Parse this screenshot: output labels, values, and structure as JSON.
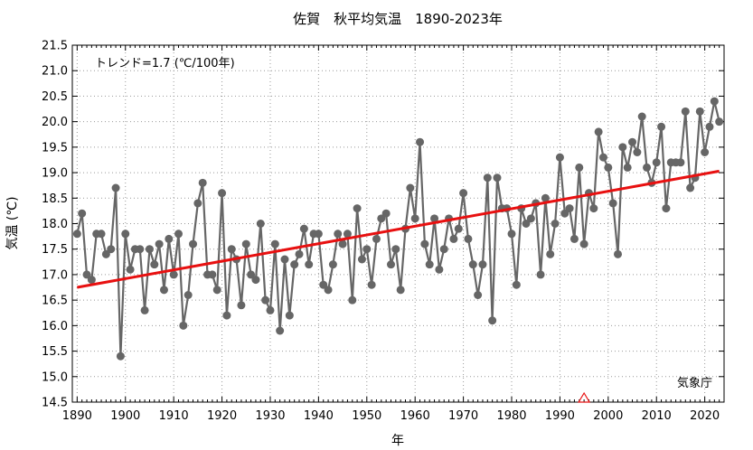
{
  "chart_data": {
    "type": "line",
    "title": "佐賀　秋平均気温　1890-2023年",
    "xlabel": "年",
    "ylabel": "気温 (℃)",
    "xlim": [
      1889,
      2024
    ],
    "ylim": [
      14.5,
      21.5
    ],
    "xticks": [
      1890,
      1900,
      1910,
      1920,
      1930,
      1940,
      1950,
      1960,
      1970,
      1980,
      1990,
      2000,
      2010,
      2020
    ],
    "yticks": [
      14.5,
      15.0,
      15.5,
      16.0,
      16.5,
      17.0,
      17.5,
      18.0,
      18.5,
      19.0,
      19.5,
      20.0,
      20.5,
      21.0,
      21.5
    ],
    "grid": true,
    "trend_annotation": "トレンド=1.7 (℃/100年)",
    "source_label": "気象庁",
    "colors": {
      "series": "#666666",
      "trend": "#e81010",
      "marker": "#e81010",
      "grid": "#999999"
    },
    "series": [
      {
        "type": "line-markers",
        "x": [
          1890,
          1891,
          1892,
          1893,
          1894,
          1895,
          1896,
          1897,
          1898,
          1899,
          1900,
          1901,
          1902,
          1903,
          1904,
          1905,
          1906,
          1907,
          1908,
          1909,
          1910,
          1911,
          1912,
          1913,
          1914,
          1915,
          1916,
          1917,
          1918,
          1919,
          1920,
          1921,
          1922,
          1923,
          1924,
          1925,
          1926,
          1927,
          1928,
          1929,
          1930,
          1931,
          1932,
          1933,
          1934,
          1935,
          1936,
          1937,
          1938,
          1939,
          1940,
          1941,
          1942,
          1943,
          1944,
          1945,
          1946,
          1947,
          1948,
          1949,
          1950,
          1951,
          1952,
          1953,
          1954,
          1955,
          1956,
          1957,
          1958,
          1959,
          1960,
          1961,
          1962,
          1963,
          1964,
          1965,
          1966,
          1967,
          1968,
          1969,
          1970,
          1971,
          1972,
          1973,
          1974,
          1975,
          1976,
          1977,
          1978,
          1979,
          1980,
          1981,
          1982,
          1983,
          1984,
          1985,
          1986,
          1987,
          1988,
          1989,
          1990,
          1991,
          1992,
          1993,
          1994,
          1995,
          1996,
          1997,
          1998,
          1999,
          2000,
          2001,
          2002,
          2003,
          2004,
          2005,
          2006,
          2007,
          2008,
          2009,
          2010,
          2011,
          2012,
          2013,
          2014,
          2015,
          2016,
          2017,
          2018,
          2019,
          2020,
          2021,
          2022,
          2023
        ],
        "y": [
          17.8,
          18.2,
          17.0,
          16.9,
          17.8,
          17.8,
          17.4,
          17.5,
          18.7,
          15.4,
          17.8,
          17.1,
          17.5,
          17.5,
          16.3,
          17.5,
          17.2,
          17.6,
          16.7,
          17.7,
          17.0,
          17.8,
          16.0,
          16.6,
          17.6,
          18.4,
          18.8,
          17.0,
          17.0,
          16.7,
          18.6,
          16.2,
          17.5,
          17.3,
          16.4,
          17.6,
          17.0,
          16.9,
          18.0,
          16.5,
          16.3,
          17.6,
          15.9,
          17.3,
          16.2,
          17.2,
          17.4,
          17.9,
          17.2,
          17.8,
          17.8,
          16.8,
          16.7,
          17.2,
          17.8,
          17.6,
          17.8,
          16.5,
          18.3,
          17.3,
          17.5,
          16.8,
          17.7,
          18.1,
          18.2,
          17.2,
          17.5,
          16.7,
          17.9,
          18.7,
          18.1,
          19.6,
          17.6,
          17.2,
          18.1,
          17.1,
          17.5,
          18.1,
          17.7,
          17.9,
          18.6,
          17.7,
          17.2,
          16.6,
          17.2,
          18.9,
          16.1,
          18.9,
          18.3,
          18.3,
          17.8,
          16.8,
          18.3,
          18.0,
          18.1,
          18.4,
          17.0,
          18.5,
          17.4,
          18.0,
          19.3,
          18.2,
          18.3,
          17.7,
          19.1,
          17.6,
          18.6,
          18.3,
          19.8,
          19.3,
          19.1,
          18.4,
          17.4,
          19.5,
          19.1,
          19.6,
          19.4,
          20.1,
          19.1,
          18.8,
          19.2,
          19.9,
          18.3,
          19.2,
          19.2,
          19.2,
          20.2,
          18.7,
          18.9,
          20.2,
          19.4,
          19.9,
          20.4,
          20.0
        ]
      },
      {
        "type": "trend-line",
        "x": [
          1890,
          2023
        ],
        "y": [
          16.75,
          19.03
        ]
      }
    ],
    "markers": [
      {
        "shape": "triangle",
        "x": 1995,
        "y": 14.5
      }
    ]
  }
}
